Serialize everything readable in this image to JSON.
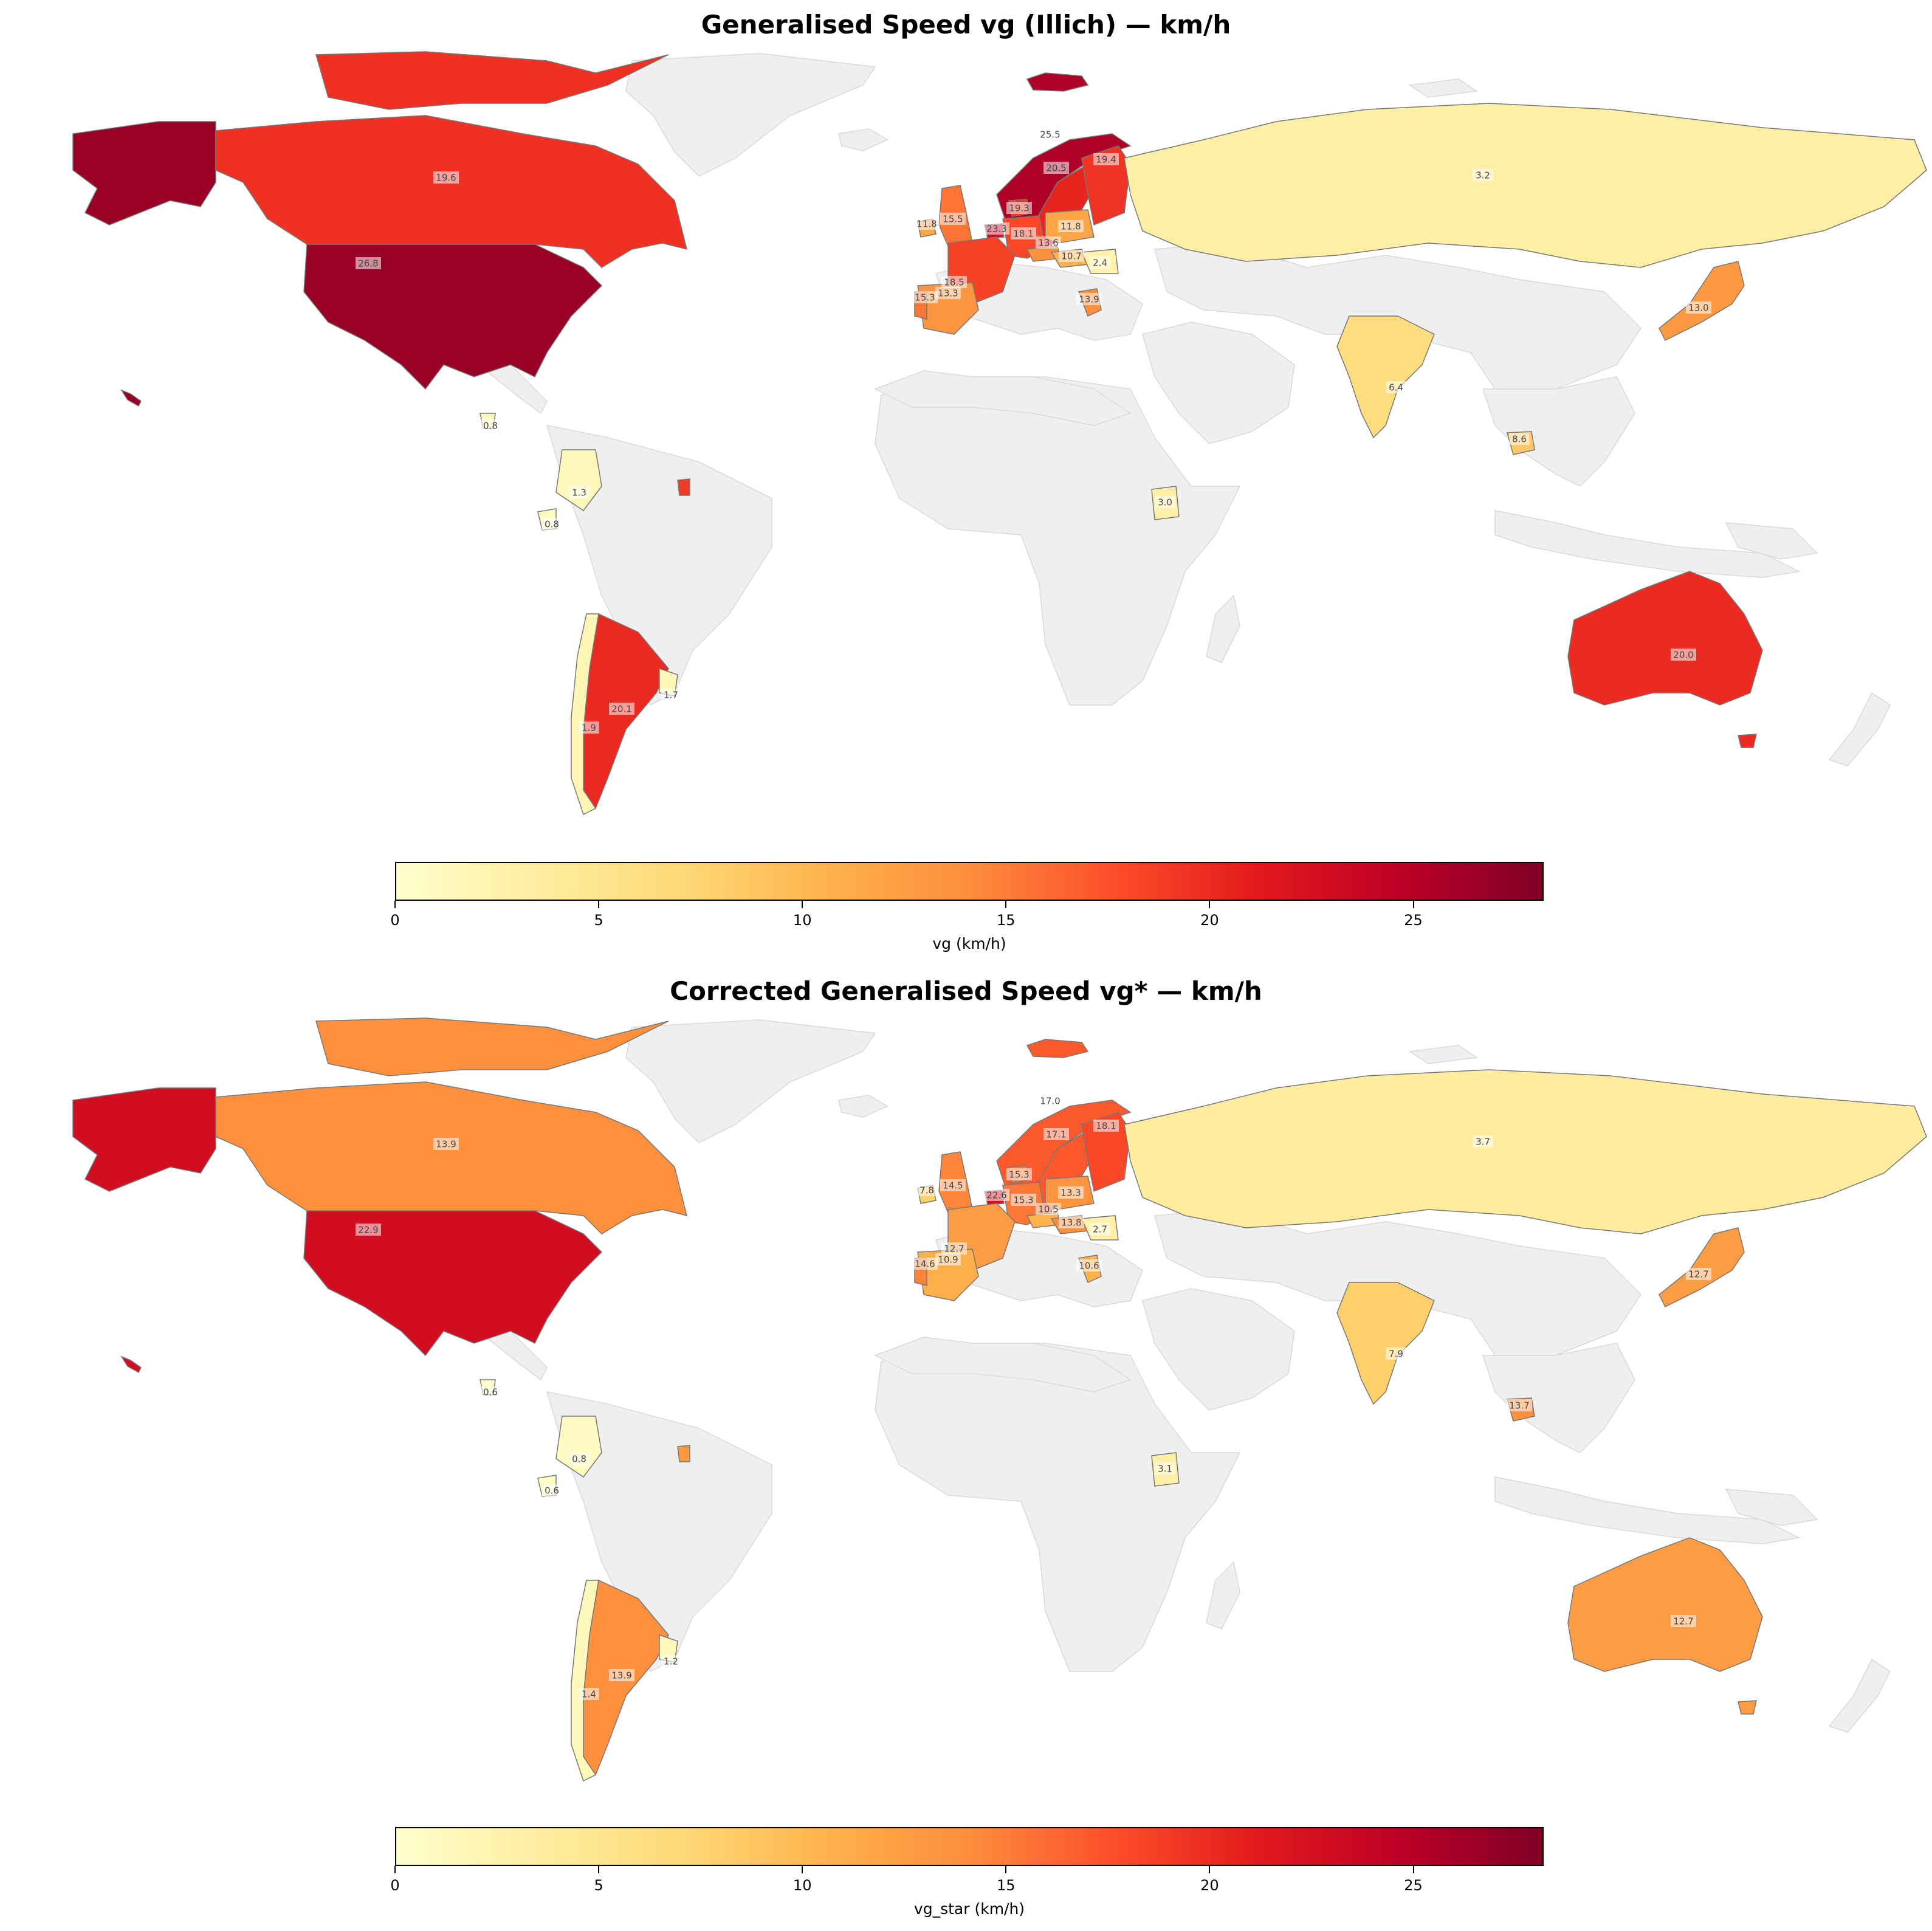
{
  "colorbar_ticks": [
    "0",
    "5",
    "10",
    "15",
    "20",
    "25"
  ],
  "colorbar_range": [
    0,
    28.2
  ],
  "colormap": [
    "#ffffcc",
    "#ffeda0",
    "#fed976",
    "#feb24c",
    "#fd8d3c",
    "#fc4e2a",
    "#e31a1c",
    "#bd0026",
    "#800026"
  ],
  "no_data_color": "#efefef",
  "panels": [
    {
      "title": "Generalised Speed vg (Illich) — km/h",
      "colorbar_label": "vg (km/h)",
      "values": {
        "usa": 26.8,
        "canada": 19.6,
        "norway": 25.5,
        "sweden": 20.5,
        "finland": 19.4,
        "russia": 3.2,
        "ireland": 11.8,
        "uk": 15.5,
        "denmark": 19.3,
        "netherlands": 23.3,
        "germany": 18.1,
        "poland": 11.8,
        "czechia": 13.6,
        "hungary": 10.7,
        "romania": 2.4,
        "france": 18.5,
        "spain": 13.3,
        "portugal": 15.3,
        "greece": 13.9,
        "japan": 13.0,
        "india": 6.4,
        "cambodia": 8.6,
        "kenya": 3.0,
        "guatemala": 0.8,
        "colombia": 1.3,
        "ecuador": 0.8,
        "argentina": 20.1,
        "uruguay": 1.7,
        "chile": 1.9,
        "australia": 20.0,
        "french_guiana": 19.0
      }
    },
    {
      "title": "Corrected Generalised Speed vg* — km/h",
      "colorbar_label": "vg_star (km/h)",
      "values": {
        "usa": 22.9,
        "canada": 13.9,
        "norway": 17.0,
        "sweden": 17.1,
        "finland": 18.1,
        "russia": 3.7,
        "ireland": 7.8,
        "uk": 14.5,
        "denmark": 15.3,
        "netherlands": 22.6,
        "germany": 15.3,
        "poland": 13.3,
        "czechia": 10.5,
        "hungary": 13.8,
        "romania": 2.7,
        "france": 12.7,
        "spain": 10.9,
        "portugal": 14.6,
        "greece": 10.6,
        "japan": 12.7,
        "india": 7.9,
        "cambodia": 13.7,
        "kenya": 3.1,
        "guatemala": 0.6,
        "colombia": 0.8,
        "ecuador": 0.6,
        "argentina": 13.9,
        "uruguay": 1.2,
        "chile": 1.4,
        "australia": 12.7,
        "french_guiana": 13.0
      }
    }
  ]
}
